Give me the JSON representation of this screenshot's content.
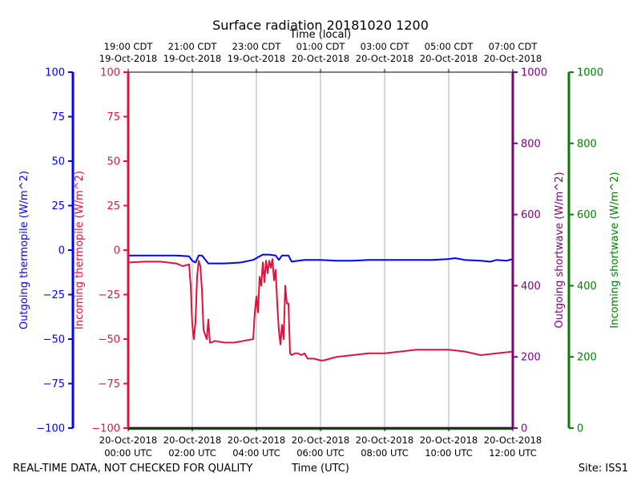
{
  "chart_data": {
    "type": "line",
    "title": "Surface radiation 20181020 1200",
    "top_axis_label": "Time (local)",
    "xlabel": "Time (UTC)",
    "footer_left": "REAL-TIME DATA, NOT CHECKED FOR QUALITY",
    "footer_right": "Site: ISS1",
    "x_range_hours_utc": [
      0,
      12
    ],
    "x_ticks_utc": [
      {
        "hour": 0,
        "line1": "20-Oct-2018",
        "line2": "00:00 UTC"
      },
      {
        "hour": 2,
        "line1": "20-Oct-2018",
        "line2": "02:00 UTC"
      },
      {
        "hour": 4,
        "line1": "20-Oct-2018",
        "line2": "04:00 UTC"
      },
      {
        "hour": 6,
        "line1": "20-Oct-2018",
        "line2": "06:00 UTC"
      },
      {
        "hour": 8,
        "line1": "20-Oct-2018",
        "line2": "08:00 UTC"
      },
      {
        "hour": 10,
        "line1": "20-Oct-2018",
        "line2": "10:00 UTC"
      },
      {
        "hour": 12,
        "line1": "20-Oct-2018",
        "line2": "12:00 UTC"
      }
    ],
    "x_ticks_local": [
      {
        "hour": 0,
        "line1": "19:00 CDT",
        "line2": "19-Oct-2018"
      },
      {
        "hour": 2,
        "line1": "21:00 CDT",
        "line2": "19-Oct-2018"
      },
      {
        "hour": 4,
        "line1": "23:00 CDT",
        "line2": "19-Oct-2018"
      },
      {
        "hour": 6,
        "line1": "01:00 CDT",
        "line2": "20-Oct-2018"
      },
      {
        "hour": 8,
        "line1": "03:00 CDT",
        "line2": "20-Oct-2018"
      },
      {
        "hour": 10,
        "line1": "05:00 CDT",
        "line2": "20-Oct-2018"
      },
      {
        "hour": 12,
        "line1": "07:00 CDT",
        "line2": "20-Oct-2018"
      }
    ],
    "grid": "vertical",
    "axes": {
      "outgoing_thermopile": {
        "label": "Outgoing thermopile (W/m^2)",
        "range": [
          -100,
          100
        ],
        "ticks": [
          -100,
          -75,
          -50,
          -25,
          0,
          25,
          50,
          75,
          100
        ],
        "color": "#0000ff"
      },
      "incoming_thermopile": {
        "label": "Incoming thermopile (W/m^2)",
        "range": [
          -100,
          100
        ],
        "ticks": [
          -100,
          -75,
          -50,
          -25,
          0,
          25,
          50,
          75,
          100
        ],
        "color": "#dc143c"
      },
      "outgoing_shortwave": {
        "label": "Outgoing shortwave (W/m^2)",
        "range": [
          0,
          1000
        ],
        "ticks": [
          0,
          200,
          400,
          600,
          800,
          1000
        ],
        "color": "#800080"
      },
      "incoming_shortwave": {
        "label": "Incoming shortwave (W/m^2)",
        "range": [
          0,
          1000
        ],
        "ticks": [
          0,
          200,
          400,
          600,
          800,
          1000
        ],
        "color": "#008000"
      }
    },
    "series": [
      {
        "axis": "outgoing_thermopile",
        "color": "#0000ff",
        "x": [
          0,
          0.5,
          1,
          1.5,
          1.9,
          2.0,
          2.1,
          2.2,
          2.3,
          2.5,
          3.0,
          3.5,
          3.9,
          4.1,
          4.2,
          4.4,
          4.6,
          4.7,
          4.8,
          5.0,
          5.1,
          5.3,
          5.5,
          6.0,
          6.5,
          7.0,
          7.5,
          8.0,
          8.5,
          9.0,
          9.5,
          10.0,
          10.2,
          10.5,
          11.0,
          11.3,
          11.5,
          11.8,
          12.0
        ],
        "y": [
          -3,
          -3,
          -3,
          -3,
          -3.5,
          -6,
          -7,
          -3,
          -3,
          -7.5,
          -7.5,
          -7,
          -5.5,
          -3.5,
          -2.5,
          -2.5,
          -3,
          -5.5,
          -3,
          -3,
          -6.5,
          -6,
          -5.5,
          -5.5,
          -6,
          -6,
          -5.5,
          -5.5,
          -5.5,
          -5.5,
          -5.5,
          -5,
          -4.5,
          -5.5,
          -6,
          -6.5,
          -5.5,
          -6,
          -5
        ]
      },
      {
        "axis": "incoming_thermopile",
        "color": "#dc143c",
        "x": [
          0,
          0.5,
          1.0,
          1.5,
          1.7,
          1.9,
          1.95,
          2.0,
          2.05,
          2.1,
          2.15,
          2.2,
          2.25,
          2.3,
          2.35,
          2.45,
          2.5,
          2.55,
          2.6,
          2.7,
          3.0,
          3.3,
          3.6,
          3.9,
          3.95,
          4.0,
          4.05,
          4.1,
          4.15,
          4.2,
          4.25,
          4.3,
          4.35,
          4.4,
          4.45,
          4.5,
          4.55,
          4.6,
          4.65,
          4.7,
          4.75,
          4.8,
          4.85,
          4.9,
          4.95,
          5.0,
          5.05,
          5.1,
          5.2,
          5.3,
          5.4,
          5.5,
          5.6,
          5.8,
          6.0,
          6.1,
          6.3,
          6.5,
          7.0,
          7.5,
          8.0,
          8.5,
          9.0,
          9.5,
          10.0,
          10.5,
          11.0,
          11.5,
          12.0
        ],
        "y": [
          -7,
          -6.5,
          -6.5,
          -7.5,
          -9,
          -8,
          -20,
          -42,
          -50,
          -40,
          -15,
          -6,
          -9,
          -22,
          -45,
          -50,
          -39,
          -52,
          -52,
          -51,
          -52,
          -52,
          -51,
          -50,
          -35,
          -26,
          -35,
          -15,
          -20,
          -7,
          -18,
          -6,
          -13,
          -6,
          -10,
          -5,
          -17,
          -11,
          -30,
          -45,
          -53,
          -42,
          -50,
          -20,
          -30,
          -30,
          -58,
          -59,
          -58,
          -58,
          -59,
          -58,
          -61,
          -61,
          -62,
          -62,
          -61,
          -60,
          -59,
          -58,
          -58,
          -57,
          -56,
          -56,
          -56,
          -57,
          -59,
          -58,
          -57
        ]
      },
      {
        "axis": "outgoing_shortwave",
        "color": "#800080",
        "x": [
          0,
          2,
          4,
          6,
          8,
          10,
          12
        ],
        "y": [
          1,
          1,
          1,
          1,
          1,
          1,
          1
        ]
      },
      {
        "axis": "incoming_shortwave",
        "color": "#008000",
        "x": [
          0,
          2,
          4,
          6,
          8,
          10,
          12
        ],
        "y": [
          -3,
          -3,
          -3,
          -3,
          -3,
          -3,
          -3
        ]
      }
    ]
  }
}
